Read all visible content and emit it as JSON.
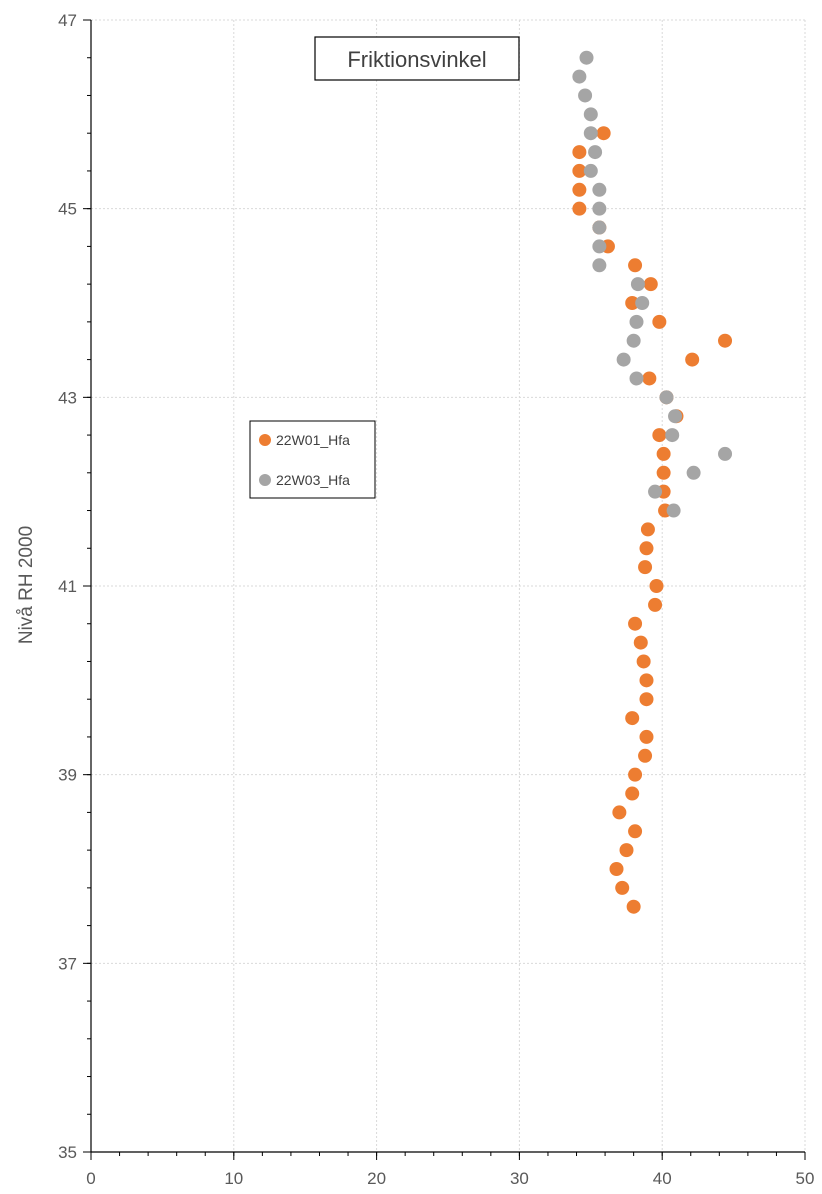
{
  "chart_data": {
    "type": "scatter",
    "title": "Friktionsvinkel",
    "xlabel": "",
    "ylabel": "Nivå RH 2000",
    "xlim": [
      0,
      50
    ],
    "ylim": [
      35,
      47
    ],
    "x_major_ticks": [
      "0",
      "10",
      "20",
      "30",
      "40",
      "50"
    ],
    "y_major_ticks": [
      "35",
      "37",
      "39",
      "41",
      "43",
      "45",
      "47"
    ],
    "x_minor_step": 2,
    "y_minor_step": 0.4,
    "grid": true,
    "legend_position": "left-middle",
    "series": [
      {
        "name": "22W01_Hfa",
        "color": "#ED7D31",
        "points": [
          [
            35.9,
            45.8
          ],
          [
            34.2,
            45.6
          ],
          [
            34.2,
            45.4
          ],
          [
            34.2,
            45.2
          ],
          [
            34.2,
            45.0
          ],
          [
            35.6,
            44.8
          ],
          [
            36.2,
            44.6
          ],
          [
            38.1,
            44.4
          ],
          [
            39.2,
            44.2
          ],
          [
            37.9,
            44.0
          ],
          [
            39.8,
            43.8
          ],
          [
            44.4,
            43.6
          ],
          [
            42.1,
            43.4
          ],
          [
            39.1,
            43.2
          ],
          [
            40.3,
            43.0
          ],
          [
            41.0,
            42.8
          ],
          [
            39.8,
            42.6
          ],
          [
            40.1,
            42.4
          ],
          [
            40.1,
            42.2
          ],
          [
            40.1,
            42.0
          ],
          [
            40.2,
            41.8
          ],
          [
            39.0,
            41.6
          ],
          [
            38.9,
            41.4
          ],
          [
            38.8,
            41.2
          ],
          [
            39.6,
            41.0
          ],
          [
            39.5,
            40.8
          ],
          [
            38.1,
            40.6
          ],
          [
            38.5,
            40.4
          ],
          [
            38.7,
            40.2
          ],
          [
            38.9,
            40.0
          ],
          [
            38.9,
            39.8
          ],
          [
            37.9,
            39.6
          ],
          [
            38.9,
            39.4
          ],
          [
            38.8,
            39.2
          ],
          [
            38.1,
            39.0
          ],
          [
            37.9,
            38.8
          ],
          [
            37.0,
            38.6
          ],
          [
            38.1,
            38.4
          ],
          [
            37.5,
            38.2
          ],
          [
            36.8,
            38.0
          ],
          [
            37.2,
            37.8
          ],
          [
            38.0,
            37.6
          ]
        ]
      },
      {
        "name": "22W03_Hfa",
        "color": "#A5A5A5",
        "points": [
          [
            34.7,
            46.6
          ],
          [
            34.2,
            46.4
          ],
          [
            34.6,
            46.2
          ],
          [
            35.0,
            46.0
          ],
          [
            35.0,
            45.8
          ],
          [
            35.3,
            45.6
          ],
          [
            35.0,
            45.4
          ],
          [
            35.6,
            45.2
          ],
          [
            35.6,
            45.0
          ],
          [
            35.6,
            44.8
          ],
          [
            35.6,
            44.6
          ],
          [
            35.6,
            44.4
          ],
          [
            38.3,
            44.2
          ],
          [
            38.6,
            44.0
          ],
          [
            38.2,
            43.8
          ],
          [
            38.0,
            43.6
          ],
          [
            37.3,
            43.4
          ],
          [
            38.2,
            43.2
          ],
          [
            40.3,
            43.0
          ],
          [
            40.9,
            42.8
          ],
          [
            40.7,
            42.6
          ],
          [
            44.4,
            42.4
          ],
          [
            42.2,
            42.2
          ],
          [
            39.5,
            42.0
          ],
          [
            40.8,
            41.8
          ]
        ]
      }
    ]
  }
}
